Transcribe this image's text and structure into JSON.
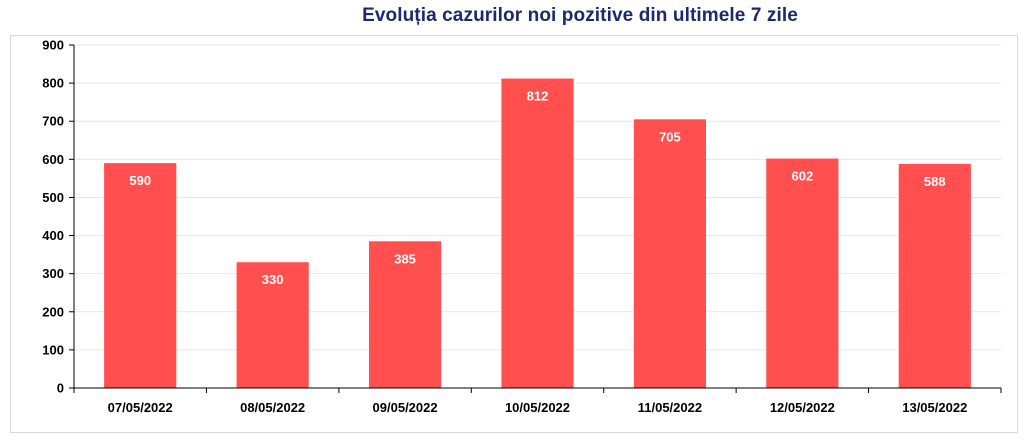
{
  "chart_data": {
    "type": "bar",
    "title": "Evoluția cazurilor noi pozitive din ultimele 7 zile",
    "categories": [
      "07/05/2022",
      "08/05/2022",
      "09/05/2022",
      "10/05/2022",
      "11/05/2022",
      "12/05/2022",
      "13/05/2022"
    ],
    "values": [
      590,
      330,
      385,
      812,
      705,
      602,
      588
    ],
    "ylim": [
      0,
      900
    ],
    "yticks": [
      0,
      100,
      200,
      300,
      400,
      500,
      600,
      700,
      800,
      900
    ],
    "grid": true,
    "legend": "none",
    "colors": {
      "bar": "#ff4f4f",
      "title": "#1a2a6c",
      "grid": "#e6e6e6",
      "axis": "#000000",
      "data_label": "#ffffff"
    }
  }
}
